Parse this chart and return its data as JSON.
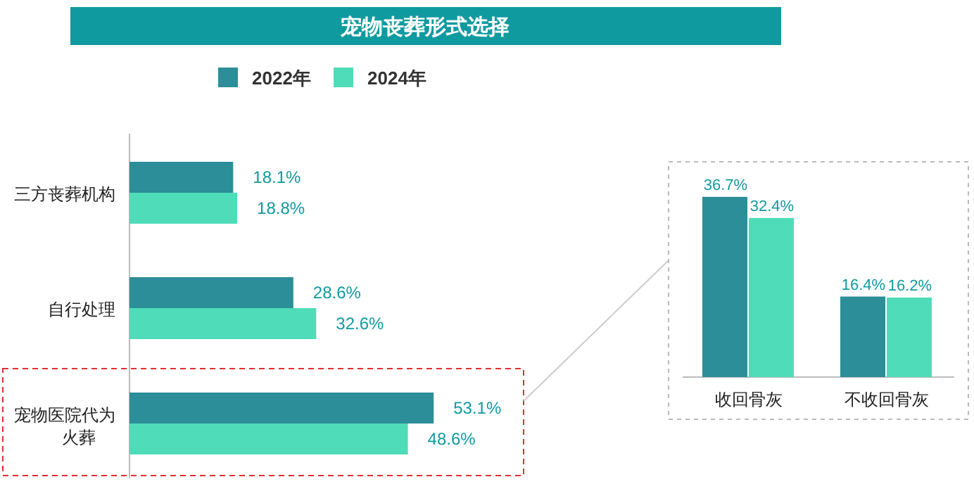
{
  "chart_data": [
    {
      "type": "bar",
      "orientation": "horizontal",
      "title": "宠物丧葬形式选择",
      "legend": "top",
      "categories": [
        "三方丧葬机构",
        "自行处理",
        "宠物医院代为火葬"
      ],
      "series": [
        {
          "name": "2022年",
          "color": "#2b8e98",
          "values": [
            18.1,
            28.6,
            53.1
          ],
          "value_labels": [
            "18.1%",
            "28.6%",
            "53.1%"
          ]
        },
        {
          "name": "2024年",
          "color": "#4fdcb8",
          "values": [
            18.8,
            32.6,
            48.6
          ],
          "value_labels": [
            "18.8%",
            "32.6%",
            "48.6%"
          ]
        }
      ]
    },
    {
      "type": "bar",
      "categories": [
        "收回骨灰",
        "不收回骨灰"
      ],
      "series": [
        {
          "color": "#2b8e98",
          "values": [
            36.7,
            16.4
          ],
          "value_labels": [
            "36.7%",
            "16.4%"
          ]
        },
        {
          "color": "#4fdcb8",
          "values": [
            32.4,
            16.2
          ],
          "value_labels": [
            "32.4%",
            "16.2%"
          ]
        }
      ]
    }
  ]
}
